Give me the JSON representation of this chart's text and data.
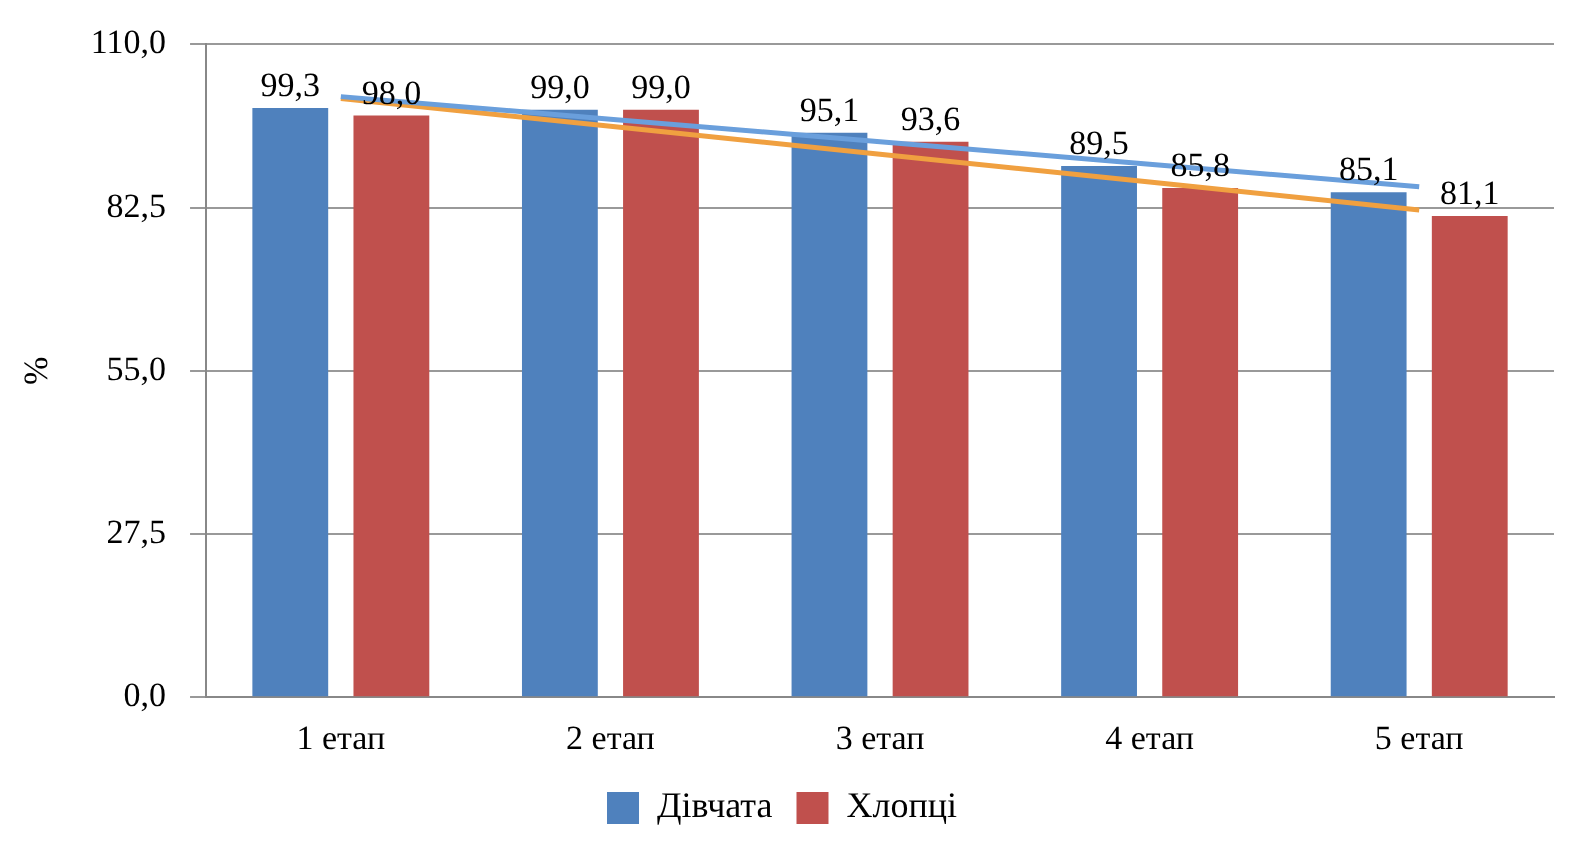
{
  "chart_data": {
    "type": "bar",
    "ylabel": "%",
    "categories": [
      "1 етап",
      "2 етап",
      "3 етап",
      "4 етап",
      "5 етап"
    ],
    "series": [
      {
        "name": "Дівчата",
        "color": "#4f81bd",
        "values": [
          99.3,
          99.0,
          95.1,
          89.5,
          85.1
        ],
        "value_labels": [
          "99,3",
          "99,0",
          "95,1",
          "89,5",
          "85,1"
        ]
      },
      {
        "name": "Хлопці",
        "color": "#c0504d",
        "values": [
          98.0,
          99.0,
          93.6,
          85.8,
          81.1
        ],
        "value_labels": [
          "98,0",
          "99,0",
          "93,6",
          "85,8",
          "81,1"
        ]
      },
      {
        "type": "line",
        "color": "#6a9fdc",
        "values": [
          101.2,
          97.4,
          93.6,
          89.8,
          86.0
        ]
      },
      {
        "type": "line",
        "color": "#f0a040",
        "values": [
          100.9,
          96.2,
          91.5,
          86.8,
          82.1
        ]
      }
    ],
    "ylim": [
      0,
      110
    ],
    "yticks": [
      {
        "value": 0,
        "label": "0,0"
      },
      {
        "value": 27.5,
        "label": "27,5"
      },
      {
        "value": 55,
        "label": "55,0"
      },
      {
        "value": 82.5,
        "label": "82,5"
      },
      {
        "value": 110,
        "label": "110,0"
      }
    ],
    "grid": "y",
    "legend": "bottom",
    "marker": "none"
  }
}
